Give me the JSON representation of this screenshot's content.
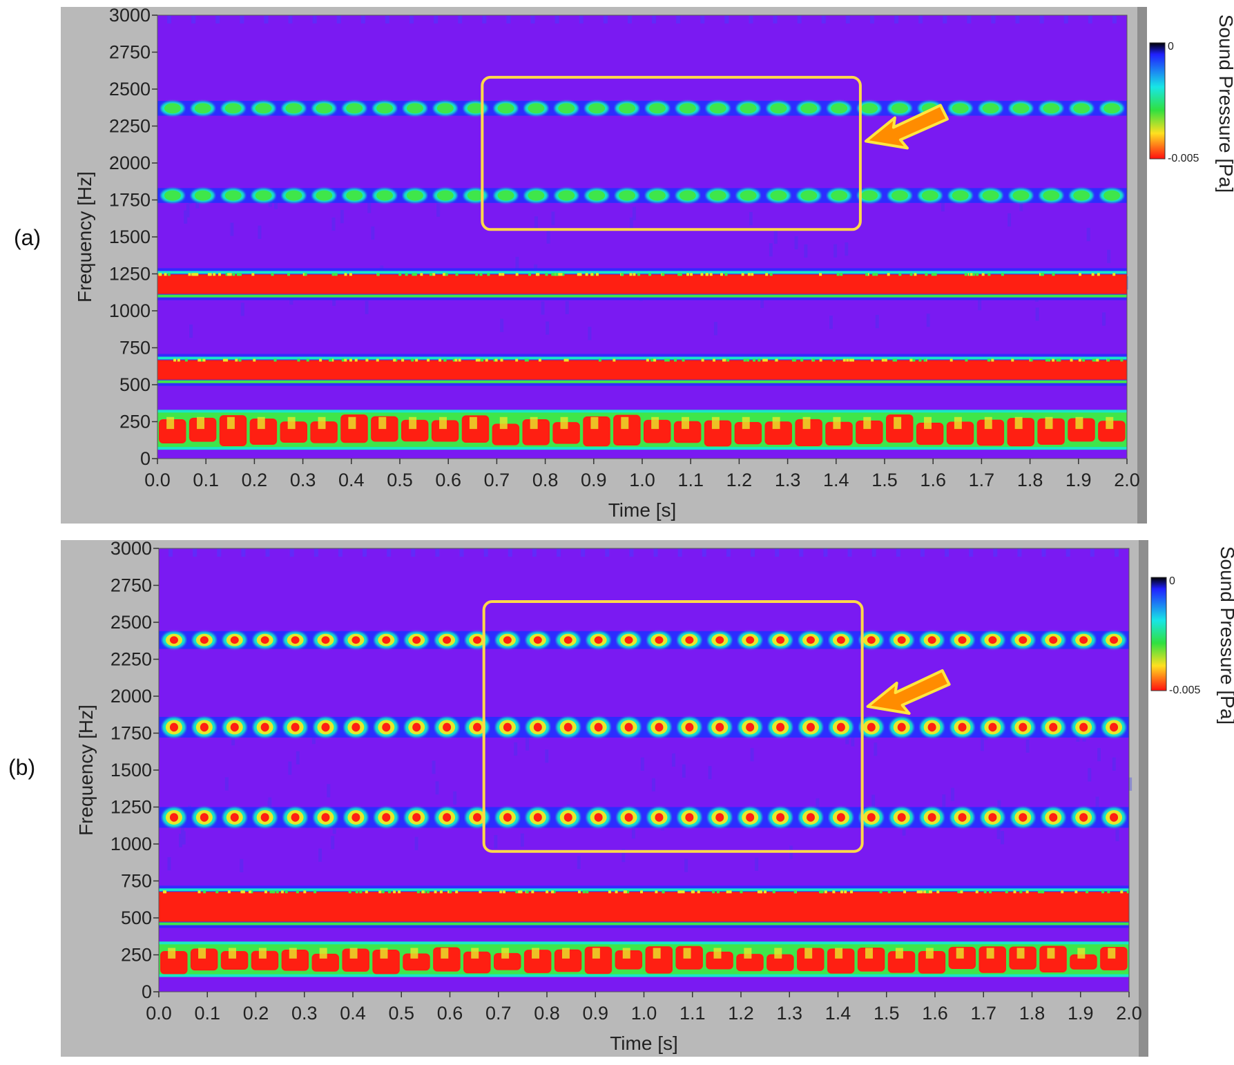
{
  "chart_data": [
    {
      "panel_label": "(a)",
      "type": "heatmap",
      "xlabel": "Time [s]",
      "ylabel": "Frequency [Hz]",
      "xlim": [
        0.0,
        2.0
      ],
      "ylim": [
        0,
        3000
      ],
      "x_ticks": [
        "0.0",
        "0.1",
        "0.2",
        "0.3",
        "0.4",
        "0.5",
        "0.6",
        "0.7",
        "0.8",
        "0.9",
        "1.0",
        "1.1",
        "1.2",
        "1.3",
        "1.4",
        "1.5",
        "1.6",
        "1.7",
        "1.8",
        "1.9",
        "2.0"
      ],
      "y_ticks": [
        "0",
        "250",
        "500",
        "750",
        "1000",
        "1250",
        "1500",
        "1750",
        "2000",
        "2250",
        "2500",
        "2750",
        "3000"
      ],
      "colorbar": {
        "label": "Sound Pressure [Pa]",
        "ticks": [
          "0",
          "-0.005"
        ]
      },
      "background_level": "blue",
      "bands": [
        {
          "f_low": 2320,
          "f_high": 2420,
          "level": "cyan",
          "pattern": "pulsed",
          "pulse_period_s": 0.0625
        },
        {
          "f_low": 1730,
          "f_high": 1830,
          "level": "cyan",
          "pattern": "pulsed",
          "pulse_period_s": 0.0625
        },
        {
          "f_low": 1100,
          "f_high": 1260,
          "level": "red",
          "pattern": "continuous"
        },
        {
          "f_low": 520,
          "f_high": 680,
          "level": "red",
          "pattern": "continuous"
        },
        {
          "f_low": 60,
          "f_high": 330,
          "level": "red",
          "pattern": "bursty",
          "pulse_period_s": 0.0625
        }
      ],
      "highlight_box": {
        "t_start": 0.67,
        "t_end": 1.45,
        "f_low": 1550,
        "f_high": 2580,
        "color": "#ffd84a"
      },
      "arrow": {
        "points_to": "highlight box right edge",
        "color": "#ff8c00"
      }
    },
    {
      "panel_label": "(b)",
      "type": "heatmap",
      "xlabel": "Time [s]",
      "ylabel": "Frequency [Hz]",
      "xlim": [
        0.0,
        2.0
      ],
      "ylim": [
        0,
        3000
      ],
      "x_ticks": [
        "0.0",
        "0.1",
        "0.2",
        "0.3",
        "0.4",
        "0.5",
        "0.6",
        "0.7",
        "0.8",
        "0.9",
        "1.0",
        "1.1",
        "1.2",
        "1.3",
        "1.4",
        "1.5",
        "1.6",
        "1.7",
        "1.8",
        "1.9",
        "2.0"
      ],
      "y_ticks": [
        "0",
        "250",
        "500",
        "750",
        "1000",
        "1250",
        "1500",
        "1750",
        "2000",
        "2250",
        "2500",
        "2750",
        "3000"
      ],
      "colorbar": {
        "label": "Sound Pressure [Pa]",
        "ticks": [
          "0",
          "-0.005"
        ]
      },
      "background_level": "blue",
      "bands": [
        {
          "f_low": 2320,
          "f_high": 2440,
          "level": "yellow",
          "pattern": "pulsed",
          "pulse_period_s": 0.0625
        },
        {
          "f_low": 1720,
          "f_high": 1860,
          "level": "red",
          "pattern": "pulsed",
          "pulse_period_s": 0.0625
        },
        {
          "f_low": 1110,
          "f_high": 1250,
          "level": "red",
          "pattern": "pulsed",
          "pulse_period_s": 0.0625
        },
        {
          "f_low": 460,
          "f_high": 690,
          "level": "red",
          "pattern": "continuous"
        },
        {
          "f_low": 100,
          "f_high": 340,
          "level": "red",
          "pattern": "bursty",
          "pulse_period_s": 0.0625
        }
      ],
      "highlight_box": {
        "t_start": 0.67,
        "t_end": 1.45,
        "f_low": 950,
        "f_high": 2640,
        "color": "#ffd84a"
      },
      "arrow": {
        "points_to": "highlight box right edge",
        "color": "#ff8c00"
      }
    }
  ],
  "colors": {
    "frame": "#b9b9b9",
    "background_purple": "#7a1af2",
    "blue": "#2c2cff",
    "cyan": "#19e6c8",
    "green": "#3fe64a",
    "yellow": "#e8e82a",
    "red": "#ff1f12",
    "box": "#ffd84a",
    "arrow": "#ff8c00"
  }
}
